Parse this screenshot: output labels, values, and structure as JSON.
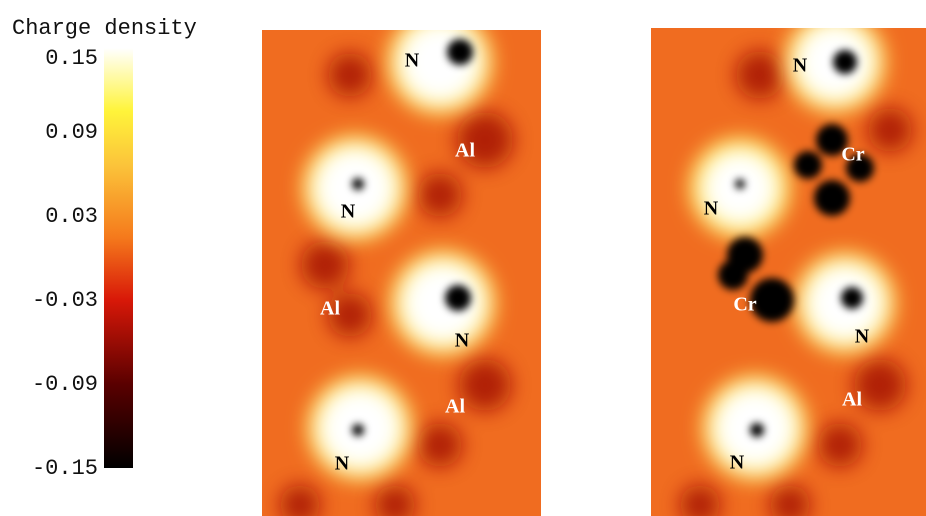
{
  "colorbar": {
    "title": "Charge density",
    "lim": [
      -0.15,
      0.15
    ],
    "ticks": [
      0.15,
      0.09,
      0.03,
      -0.03,
      -0.09,
      -0.15
    ]
  },
  "panels": [
    {
      "labels": [
        "N",
        "Al",
        "N",
        "Al",
        "N",
        "Al",
        "N"
      ]
    },
    {
      "labels": [
        "N",
        "Cr",
        "N",
        "Cr",
        "N",
        "Al",
        "N"
      ]
    }
  ]
}
